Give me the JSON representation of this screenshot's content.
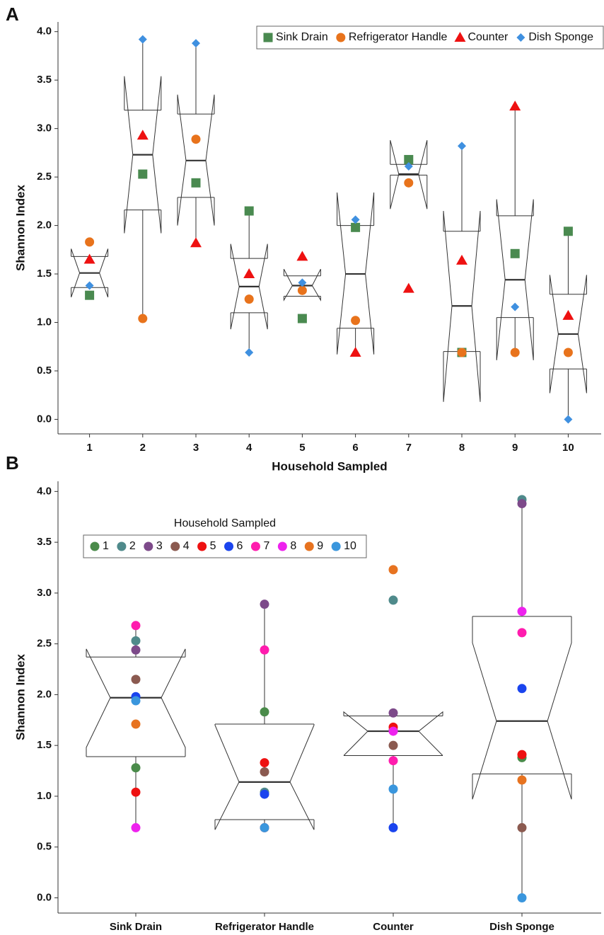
{
  "chart_data": [
    {
      "type": "box",
      "panel": "A",
      "xlabel": "Household Sampled",
      "ylabel": "Shannon Index",
      "categories": [
        "1",
        "2",
        "3",
        "4",
        "5",
        "6",
        "7",
        "8",
        "9",
        "10"
      ],
      "series": [
        {
          "name": "Sink Drain",
          "color": "#4a8a50",
          "marker": "square",
          "values": [
            1.28,
            2.53,
            2.44,
            2.15,
            1.04,
            1.98,
            2.68,
            0.69,
            1.71,
            1.94
          ]
        },
        {
          "name": "Refrigerator Handle",
          "color": "#e8731c",
          "marker": "circle",
          "values": [
            1.83,
            1.04,
            2.89,
            1.24,
            1.33,
            1.02,
            2.44,
            0.69,
            0.69,
            0.69
          ]
        },
        {
          "name": "Counter",
          "color": "#ee1111",
          "marker": "triangle",
          "values": [
            1.65,
            2.93,
            1.82,
            1.5,
            1.68,
            0.69,
            1.35,
            1.64,
            3.23,
            1.07
          ]
        },
        {
          "name": "Dish Sponge",
          "color": "#3f90e0",
          "marker": "diamond",
          "values": [
            1.38,
            3.92,
            3.88,
            0.69,
            1.41,
            2.06,
            2.61,
            2.82,
            1.16,
            0
          ]
        }
      ],
      "boxes": [
        {
          "low": 1.36,
          "q1": 1.36,
          "median": 1.51,
          "q3": 1.68,
          "high": 1.68,
          "notch_low": 1.26,
          "notch_high": 1.76
        },
        {
          "low": 1.04,
          "q1": 2.16,
          "median": 2.73,
          "q3": 3.19,
          "high": 3.92,
          "notch_low": 1.92,
          "notch_high": 3.54
        },
        {
          "low": 1.82,
          "q1": 2.29,
          "median": 2.67,
          "q3": 3.15,
          "high": 3.88,
          "notch_low": 2.0,
          "notch_high": 3.35
        },
        {
          "low": 0.69,
          "q1": 1.1,
          "median": 1.37,
          "q3": 1.66,
          "high": 2.15,
          "notch_low": 0.93,
          "notch_high": 1.81
        },
        {
          "low": 1.27,
          "q1": 1.27,
          "median": 1.38,
          "q3": 1.48,
          "high": 1.48,
          "notch_low": 1.23,
          "notch_high": 1.55
        },
        {
          "low": 0.69,
          "q1": 0.94,
          "median": 1.5,
          "q3": 2.0,
          "high": 2.06,
          "notch_low": 0.67,
          "notch_high": 2.34
        },
        {
          "low": 2.52,
          "q1": 2.52,
          "median": 2.53,
          "q3": 2.63,
          "high": 2.63,
          "notch_low": 2.17,
          "notch_high": 2.88
        },
        {
          "low": 0.69,
          "q1": 0.7,
          "median": 1.17,
          "q3": 1.94,
          "high": 2.82,
          "notch_low": 0.18,
          "notch_high": 2.15
        },
        {
          "low": 0.69,
          "q1": 1.05,
          "median": 1.44,
          "q3": 2.1,
          "high": 3.23,
          "notch_low": 0.61,
          "notch_high": 2.27
        },
        {
          "low": 0,
          "q1": 0.52,
          "median": 0.88,
          "q3": 1.29,
          "high": 1.94,
          "notch_low": 0.27,
          "notch_high": 1.49
        }
      ],
      "ylim": [
        -0.15,
        4.1
      ],
      "yticks": [
        {
          "value": 0,
          "label": "0.0"
        },
        {
          "value": 0.5,
          "label": "0.5"
        },
        {
          "value": 1,
          "label": "1.0"
        },
        {
          "value": 1.5,
          "label": "1.5"
        },
        {
          "value": 2,
          "label": "2.0"
        },
        {
          "value": 2.5,
          "label": "2.5"
        },
        {
          "value": 3,
          "label": "3.0"
        },
        {
          "value": 3.5,
          "label": "3.5"
        },
        {
          "value": 4,
          "label": "4.0"
        }
      ],
      "legend": "top-right"
    },
    {
      "type": "box",
      "panel": "B",
      "ylabel": "Shannon Index",
      "legend_title": "Household Sampled",
      "categories": [
        "Sink Drain",
        "Refrigerator Handle",
        "Counter",
        "Dish Sponge"
      ],
      "series": [
        {
          "name": "1",
          "color": "#4a8b4a",
          "marker": "circle",
          "values": [
            1.28,
            1.83,
            1.65,
            1.38
          ]
        },
        {
          "name": "2",
          "color": "#4f8a8b",
          "marker": "circle",
          "values": [
            2.53,
            1.04,
            2.93,
            3.92
          ]
        },
        {
          "name": "3",
          "color": "#7d4a8a",
          "marker": "circle",
          "values": [
            2.44,
            2.89,
            1.82,
            3.88
          ]
        },
        {
          "name": "4",
          "color": "#8b5a50",
          "marker": "circle",
          "values": [
            2.15,
            1.24,
            1.5,
            0.69
          ]
        },
        {
          "name": "5",
          "color": "#ee1111",
          "marker": "circle",
          "values": [
            1.04,
            1.33,
            1.68,
            1.41
          ]
        },
        {
          "name": "6",
          "color": "#1a44ee",
          "marker": "circle",
          "values": [
            1.98,
            1.02,
            0.69,
            2.06
          ]
        },
        {
          "name": "7",
          "color": "#ff1cae",
          "marker": "circle",
          "values": [
            2.68,
            2.44,
            1.35,
            2.61
          ]
        },
        {
          "name": "8",
          "color": "#ee22ee",
          "marker": "circle",
          "values": [
            0.69,
            0.69,
            1.64,
            2.82
          ]
        },
        {
          "name": "9",
          "color": "#e77320",
          "marker": "circle",
          "values": [
            1.71,
            0.69,
            3.23,
            1.16
          ]
        },
        {
          "name": "10",
          "color": "#3a96dd",
          "marker": "circle",
          "values": [
            1.94,
            0.69,
            1.07,
            0
          ]
        }
      ],
      "boxes": [
        {
          "low": 0.69,
          "q1": 1.39,
          "median": 1.97,
          "q3": 2.37,
          "high": 2.68,
          "notch_low": 1.48,
          "notch_high": 2.45
        },
        {
          "low": 0.69,
          "q1": 0.77,
          "median": 1.14,
          "q3": 1.71,
          "high": 2.89,
          "notch_low": 0.67,
          "notch_high": 1.7
        },
        {
          "low": 0.69,
          "q1": 1.4,
          "median": 1.64,
          "q3": 1.79,
          "high": 1.82,
          "notch_low": 1.4,
          "notch_high": 1.83
        },
        {
          "low": 0,
          "q1": 1.22,
          "median": 1.74,
          "q3": 2.77,
          "high": 3.92,
          "notch_low": 0.97,
          "notch_high": 2.51
        }
      ],
      "ylim": [
        -0.15,
        4.1
      ],
      "yticks": [
        {
          "value": 0,
          "label": "0.0"
        },
        {
          "value": 0.5,
          "label": "0.5"
        },
        {
          "value": 1,
          "label": "1.0"
        },
        {
          "value": 1.5,
          "label": "1.5"
        },
        {
          "value": 2,
          "label": "2.0"
        },
        {
          "value": 2.5,
          "label": "2.5"
        },
        {
          "value": 3,
          "label": "3.0"
        },
        {
          "value": 3.5,
          "label": "3.5"
        },
        {
          "value": 4,
          "label": "4.0"
        }
      ],
      "legend": "top-left"
    }
  ]
}
